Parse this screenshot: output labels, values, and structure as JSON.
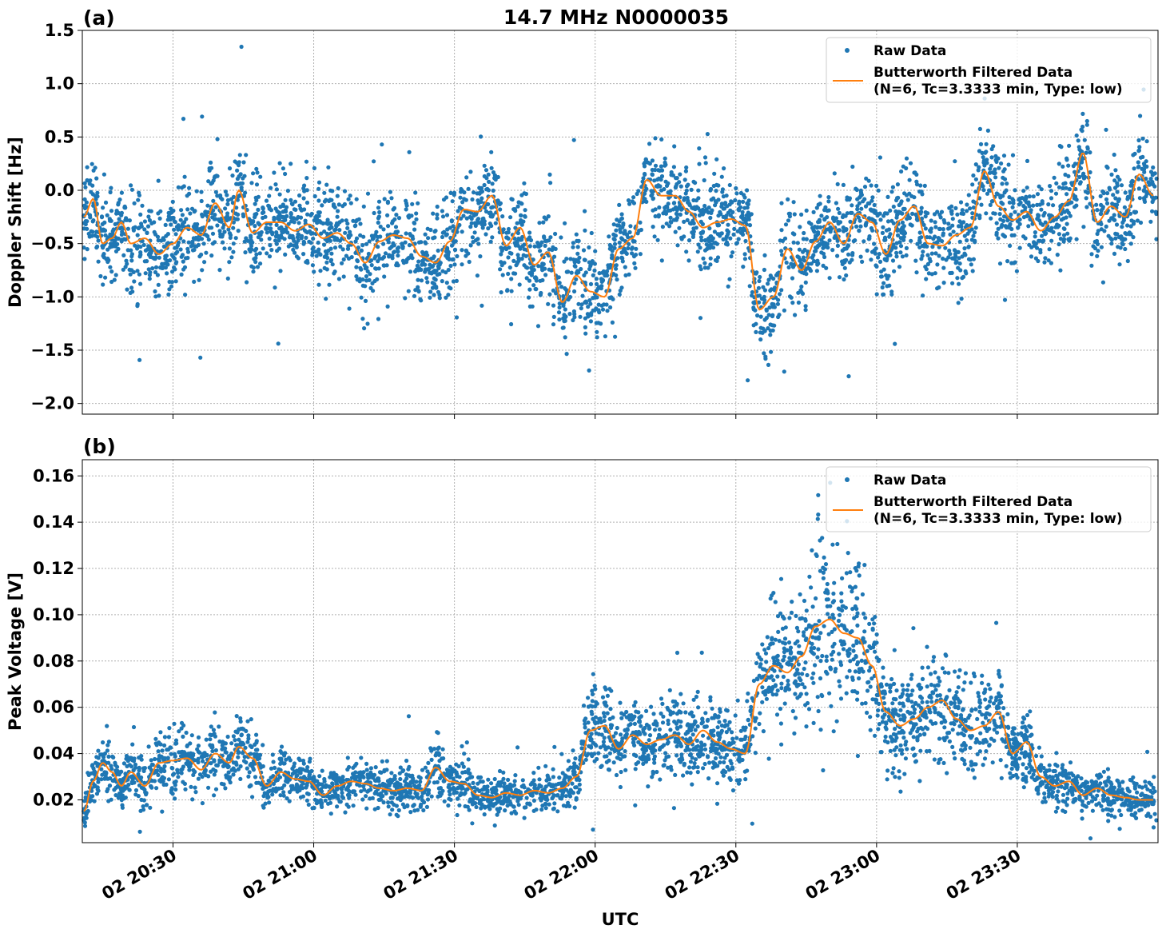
{
  "figure": {
    "title": "14.7 MHz N0000035",
    "xlabel": "UTC",
    "x_tick_labels": [
      "02 20:30",
      "02 21:00",
      "02 21:30",
      "02 22:00",
      "02 22:30",
      "02 23:00",
      "02 23:30"
    ]
  },
  "colors": {
    "raw": "#1f77b4",
    "filtered": "#ff7f0e",
    "grid": "#b0b0b0"
  },
  "chart_data": [
    {
      "panel": "(a)",
      "type": "scatter",
      "xlabel": "",
      "ylabel": "Doppler Shift [Hz]",
      "x_range": [
        "20:10:40",
        "24:00:00"
      ],
      "ylim": [
        -2.1,
        1.5
      ],
      "y_ticks": [
        -2.0,
        -1.5,
        -1.0,
        -0.5,
        0.0,
        0.5,
        1.0,
        1.5
      ],
      "y_tick_labels": [
        "−2.0",
        "−1.5",
        "−1.0",
        "−0.5",
        "0.0",
        "0.5",
        "1.0",
        "1.5"
      ],
      "grid": true,
      "legend_position": "top-right",
      "legend": [
        "Raw Data",
        "Butterworth Filtered Data",
        "(N=6, Tc=3.3333 min, Type: low)"
      ],
      "series": [
        {
          "name": "Butterworth Filtered Data",
          "type": "line",
          "x": [
            "20:11",
            "20:13",
            "20:15",
            "20:17",
            "20:19",
            "20:21",
            "20:24",
            "20:27",
            "20:30",
            "20:33",
            "20:36",
            "20:39",
            "20:42",
            "20:44",
            "20:47",
            "20:50",
            "20:53",
            "20:56",
            "20:59",
            "21:02",
            "21:05",
            "21:08",
            "21:11",
            "21:14",
            "21:17",
            "21:20",
            "21:23",
            "21:26",
            "21:29",
            "21:32",
            "21:35",
            "21:38",
            "21:41",
            "21:44",
            "21:47",
            "21:50",
            "21:53",
            "21:56",
            "21:59",
            "22:02",
            "22:05",
            "22:08",
            "22:11",
            "22:14",
            "22:17",
            "22:20",
            "22:23",
            "22:26",
            "22:29",
            "22:32",
            "22:35",
            "22:38",
            "22:41",
            "22:44",
            "22:47",
            "22:50",
            "22:53",
            "22:56",
            "22:59",
            "23:02",
            "23:05",
            "23:08",
            "23:11",
            "23:14",
            "23:17",
            "23:20",
            "23:23",
            "23:26",
            "23:29",
            "23:32",
            "23:35",
            "23:38",
            "23:41",
            "23:44",
            "23:47",
            "23:50",
            "23:53",
            "23:56",
            "23:59"
          ],
          "y": [
            -0.25,
            -0.08,
            -0.5,
            -0.45,
            -0.3,
            -0.5,
            -0.45,
            -0.6,
            -0.5,
            -0.35,
            -0.42,
            -0.12,
            -0.35,
            0.0,
            -0.4,
            -0.3,
            -0.3,
            -0.38,
            -0.32,
            -0.45,
            -0.4,
            -0.5,
            -0.68,
            -0.48,
            -0.42,
            -0.45,
            -0.62,
            -0.68,
            -0.48,
            -0.18,
            -0.2,
            -0.05,
            -0.52,
            -0.35,
            -0.7,
            -0.58,
            -1.05,
            -0.8,
            -0.95,
            -1.0,
            -0.55,
            -0.45,
            0.1,
            -0.05,
            -0.05,
            -0.2,
            -0.35,
            -0.3,
            -0.27,
            -0.33,
            -1.12,
            -1.0,
            -0.55,
            -0.75,
            -0.48,
            -0.3,
            -0.5,
            -0.22,
            -0.3,
            -0.6,
            -0.28,
            -0.15,
            -0.5,
            -0.52,
            -0.42,
            -0.35,
            0.18,
            -0.15,
            -0.28,
            -0.2,
            -0.38,
            -0.25,
            -0.1,
            0.35,
            -0.3,
            -0.15,
            -0.25,
            0.15,
            -0.05
          ]
        },
        {
          "name": "Raw Data",
          "type": "scatter",
          "note_points": "dense scatter around the filtered line",
          "spread": 0.22
        }
      ]
    },
    {
      "panel": "(b)",
      "type": "scatter",
      "xlabel": "UTC",
      "ylabel": "Peak Voltage [V]",
      "x_range": [
        "20:10:40",
        "24:00:00"
      ],
      "ylim": [
        0.0015,
        0.167
      ],
      "y_ticks": [
        0.02,
        0.04,
        0.06,
        0.08,
        0.1,
        0.12,
        0.14,
        0.16
      ],
      "y_tick_labels": [
        "0.02",
        "0.04",
        "0.06",
        "0.08",
        "0.10",
        "0.12",
        "0.14",
        "0.16"
      ],
      "grid": true,
      "legend_position": "top-right",
      "legend": [
        "Raw Data",
        "Butterworth Filtered Data",
        "(N=6, Tc=3.3333 min, Type: low)"
      ],
      "series": [
        {
          "name": "Butterworth Filtered Data",
          "type": "line",
          "x": [
            "20:11",
            "20:13",
            "20:15",
            "20:17",
            "20:19",
            "20:21",
            "20:24",
            "20:27",
            "20:30",
            "20:33",
            "20:36",
            "20:39",
            "20:42",
            "20:44",
            "20:47",
            "20:50",
            "20:53",
            "20:56",
            "20:59",
            "21:02",
            "21:05",
            "21:08",
            "21:11",
            "21:14",
            "21:17",
            "21:20",
            "21:23",
            "21:26",
            "21:29",
            "21:32",
            "21:35",
            "21:38",
            "21:41",
            "21:44",
            "21:47",
            "21:50",
            "21:53",
            "21:56",
            "21:59",
            "22:02",
            "22:05",
            "22:08",
            "22:11",
            "22:14",
            "22:17",
            "22:20",
            "22:23",
            "22:26",
            "22:29",
            "22:32",
            "22:35",
            "22:38",
            "22:41",
            "22:44",
            "22:47",
            "22:50",
            "22:53",
            "22:56",
            "22:59",
            "23:02",
            "23:05",
            "23:08",
            "23:11",
            "23:14",
            "23:17",
            "23:20",
            "23:23",
            "23:26",
            "23:29",
            "23:32",
            "23:35",
            "23:38",
            "23:41",
            "23:44",
            "23:47",
            "23:50",
            "23:53",
            "23:56",
            "23:59"
          ],
          "y": [
            0.015,
            0.028,
            0.036,
            0.032,
            0.026,
            0.032,
            0.026,
            0.036,
            0.037,
            0.038,
            0.033,
            0.04,
            0.036,
            0.043,
            0.038,
            0.026,
            0.032,
            0.029,
            0.028,
            0.022,
            0.026,
            0.028,
            0.027,
            0.025,
            0.024,
            0.025,
            0.024,
            0.034,
            0.028,
            0.027,
            0.022,
            0.021,
            0.023,
            0.022,
            0.024,
            0.023,
            0.025,
            0.03,
            0.05,
            0.052,
            0.042,
            0.048,
            0.044,
            0.046,
            0.048,
            0.044,
            0.05,
            0.045,
            0.042,
            0.04,
            0.07,
            0.078,
            0.075,
            0.082,
            0.095,
            0.098,
            0.092,
            0.09,
            0.078,
            0.058,
            0.052,
            0.055,
            0.06,
            0.063,
            0.055,
            0.05,
            0.052,
            0.058,
            0.04,
            0.045,
            0.03,
            0.026,
            0.028,
            0.022,
            0.025,
            0.022,
            0.021,
            0.02,
            0.02
          ]
        },
        {
          "name": "Raw Data",
          "type": "scatter",
          "note_points": "dense scatter around the filtered line",
          "spread_fraction": 0.18
        }
      ]
    }
  ]
}
